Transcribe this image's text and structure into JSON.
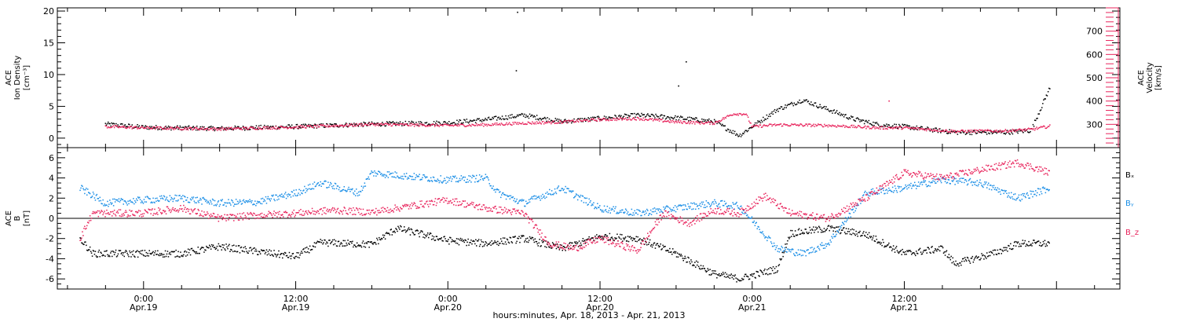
{
  "colors": {
    "black": "#000000",
    "pink": "#e8245c",
    "blue": "#1a8ee6"
  },
  "chart_data": [
    {
      "type": "scatter",
      "panel": "top",
      "ylabel_lines": [
        "ACE",
        "Ion Density",
        "[cm⁻³]"
      ],
      "ylim": [
        -1.5,
        20.5
      ],
      "yticks": [
        0,
        5,
        10,
        15,
        20
      ],
      "y2label_lines": [
        "ACE",
        "Velocity",
        "[km/s]"
      ],
      "y2lim": [
        200,
        800
      ],
      "y2ticks": [
        300,
        400,
        500,
        600,
        700
      ],
      "series": [
        {
          "axis": "left",
          "color": "#000000",
          "points": [
            [
              -3,
              2.2
            ],
            [
              0,
              1.7
            ],
            [
              6,
              1.5
            ],
            [
              12,
              1.8
            ],
            [
              18,
              2.2
            ],
            [
              24,
              2.4
            ],
            [
              27,
              2.9
            ],
            [
              30,
              3.6
            ],
            [
              33,
              2.6
            ],
            [
              36,
              3.1
            ],
            [
              39,
              3.6
            ],
            [
              42,
              3.2
            ],
            [
              45,
              2.6
            ],
            [
              47,
              0.4
            ],
            [
              48,
              1.8
            ],
            [
              50,
              4.5
            ],
            [
              52,
              6.0
            ],
            [
              54,
              4.5
            ],
            [
              56,
              3.0
            ],
            [
              58,
              2.1
            ],
            [
              60,
              1.8
            ],
            [
              64,
              0.9
            ],
            [
              68,
              0.9
            ],
            [
              70,
              1.2
            ],
            [
              71.5,
              8.0
            ]
          ]
        },
        {
          "axis": "right",
          "color": "#e8245c",
          "points": [
            [
              -3,
              290
            ],
            [
              0,
              285
            ],
            [
              6,
              280
            ],
            [
              12,
              288
            ],
            [
              18,
              300
            ],
            [
              24,
              295
            ],
            [
              27,
              298
            ],
            [
              30,
              305
            ],
            [
              33,
              310
            ],
            [
              36,
              320
            ],
            [
              39,
              325
            ],
            [
              42,
              310
            ],
            [
              45,
              305
            ],
            [
              46.5,
              345
            ],
            [
              47.5,
              345
            ],
            [
              48,
              290
            ],
            [
              50,
              298
            ],
            [
              54,
              295
            ],
            [
              58,
              285
            ],
            [
              60,
              285
            ],
            [
              64,
              270
            ],
            [
              68,
              272
            ],
            [
              70,
              278
            ],
            [
              71.5,
              292
            ]
          ]
        }
      ],
      "spikes": [
        {
          "x": 29.5,
          "y": 19.8,
          "axis": "left"
        },
        {
          "x": 29.4,
          "y": 10.6,
          "axis": "left"
        },
        {
          "x": 42.8,
          "y": 12.0,
          "axis": "left"
        },
        {
          "x": 42.2,
          "y": 8.2,
          "axis": "left"
        },
        {
          "x": 58.8,
          "y": 400,
          "axis": "right"
        }
      ]
    },
    {
      "type": "scatter",
      "panel": "bottom",
      "ylabel_lines": [
        "ACE",
        "B",
        "[nT]"
      ],
      "ylim": [
        -7,
        7
      ],
      "yticks": [
        -6,
        -4,
        -2,
        0,
        2,
        4,
        6
      ],
      "legend": [
        {
          "label": "Bₓ",
          "color": "#000000"
        },
        {
          "label": "Bᵧ",
          "color": "#1a8ee6"
        },
        {
          "label": "B_z",
          "color": "#e8245c"
        }
      ],
      "series": [
        {
          "name": "Bx",
          "color": "#000000",
          "points": [
            [
              -5,
              -2.0
            ],
            [
              -4,
              -3.5
            ],
            [
              0,
              -3.5
            ],
            [
              3,
              -3.5
            ],
            [
              6,
              -2.8
            ],
            [
              9,
              -3.3
            ],
            [
              12,
              -3.8
            ],
            [
              14,
              -2.4
            ],
            [
              18,
              -2.6
            ],
            [
              20,
              -1.0
            ],
            [
              24,
              -2.2
            ],
            [
              27,
              -2.5
            ],
            [
              30,
              -2.0
            ],
            [
              33,
              -3.0
            ],
            [
              36,
              -1.8
            ],
            [
              39,
              -2.0
            ],
            [
              42,
              -3.5
            ],
            [
              45,
              -5.5
            ],
            [
              47,
              -6.0
            ],
            [
              50,
              -5.0
            ],
            [
              51,
              -1.5
            ],
            [
              54,
              -1.0
            ],
            [
              57,
              -1.6
            ],
            [
              60,
              -3.5
            ],
            [
              63,
              -3.0
            ],
            [
              64,
              -4.5
            ],
            [
              67,
              -3.5
            ],
            [
              69,
              -2.5
            ],
            [
              71.5,
              -2.5
            ]
          ]
        },
        {
          "name": "By",
          "color": "#1a8ee6",
          "points": [
            [
              -5,
              3.0
            ],
            [
              -3,
              1.5
            ],
            [
              0,
              1.8
            ],
            [
              3,
              2.0
            ],
            [
              6,
              1.5
            ],
            [
              9,
              1.6
            ],
            [
              12,
              2.5
            ],
            [
              14,
              3.5
            ],
            [
              17,
              2.5
            ],
            [
              18,
              4.5
            ],
            [
              24,
              3.8
            ],
            [
              27,
              4.0
            ],
            [
              28,
              2.5
            ],
            [
              30,
              1.5
            ],
            [
              33,
              3.0
            ],
            [
              36,
              1.0
            ],
            [
              39,
              0.5
            ],
            [
              42,
              1.0
            ],
            [
              45,
              1.5
            ],
            [
              47,
              1.2
            ],
            [
              50,
              -3.0
            ],
            [
              52,
              -3.5
            ],
            [
              54,
              -2.5
            ],
            [
              57,
              2.5
            ],
            [
              60,
              3.0
            ],
            [
              63,
              3.8
            ],
            [
              66,
              3.5
            ],
            [
              69,
              2.0
            ],
            [
              71.5,
              3.0
            ]
          ]
        },
        {
          "name": "Bz",
          "color": "#e8245c",
          "points": [
            [
              -5,
              -2.0
            ],
            [
              -4,
              0.5
            ],
            [
              -3,
              0.5
            ],
            [
              0,
              0.5
            ],
            [
              3,
              1.0
            ],
            [
              6,
              0.0
            ],
            [
              9,
              0.3
            ],
            [
              12,
              0.5
            ],
            [
              15,
              0.8
            ],
            [
              18,
              0.6
            ],
            [
              21,
              1.2
            ],
            [
              24,
              1.8
            ],
            [
              27,
              1.0
            ],
            [
              30,
              0.5
            ],
            [
              32,
              -2.5
            ],
            [
              34,
              -3.0
            ],
            [
              36,
              -2.0
            ],
            [
              39,
              -3.2
            ],
            [
              41,
              0.5
            ],
            [
              43,
              -0.5
            ],
            [
              45,
              0.8
            ],
            [
              47,
              0.5
            ],
            [
              49,
              2.2
            ],
            [
              51,
              0.5
            ],
            [
              54,
              0.0
            ],
            [
              57,
              2.0
            ],
            [
              60,
              4.5
            ],
            [
              63,
              4.0
            ],
            [
              66,
              4.8
            ],
            [
              69,
              5.5
            ],
            [
              71.5,
              4.5
            ]
          ]
        }
      ]
    }
  ],
  "x_axis": {
    "xlim": [
      -6.8,
      77
    ],
    "major_ticks": [
      {
        "x": 0,
        "time": "0:00",
        "date": "Apr.19"
      },
      {
        "x": 12,
        "time": "12:00",
        "date": "Apr.19"
      },
      {
        "x": 24,
        "time": "0:00",
        "date": "Apr.20"
      },
      {
        "x": 36,
        "time": "12:00",
        "date": "Apr.20"
      },
      {
        "x": 48,
        "time": "0:00",
        "date": "Apr.21"
      },
      {
        "x": 60,
        "time": "12:00",
        "date": "Apr.21"
      }
    ],
    "title": "hours:minutes, Apr. 18, 2013 - Apr. 21, 2013"
  }
}
